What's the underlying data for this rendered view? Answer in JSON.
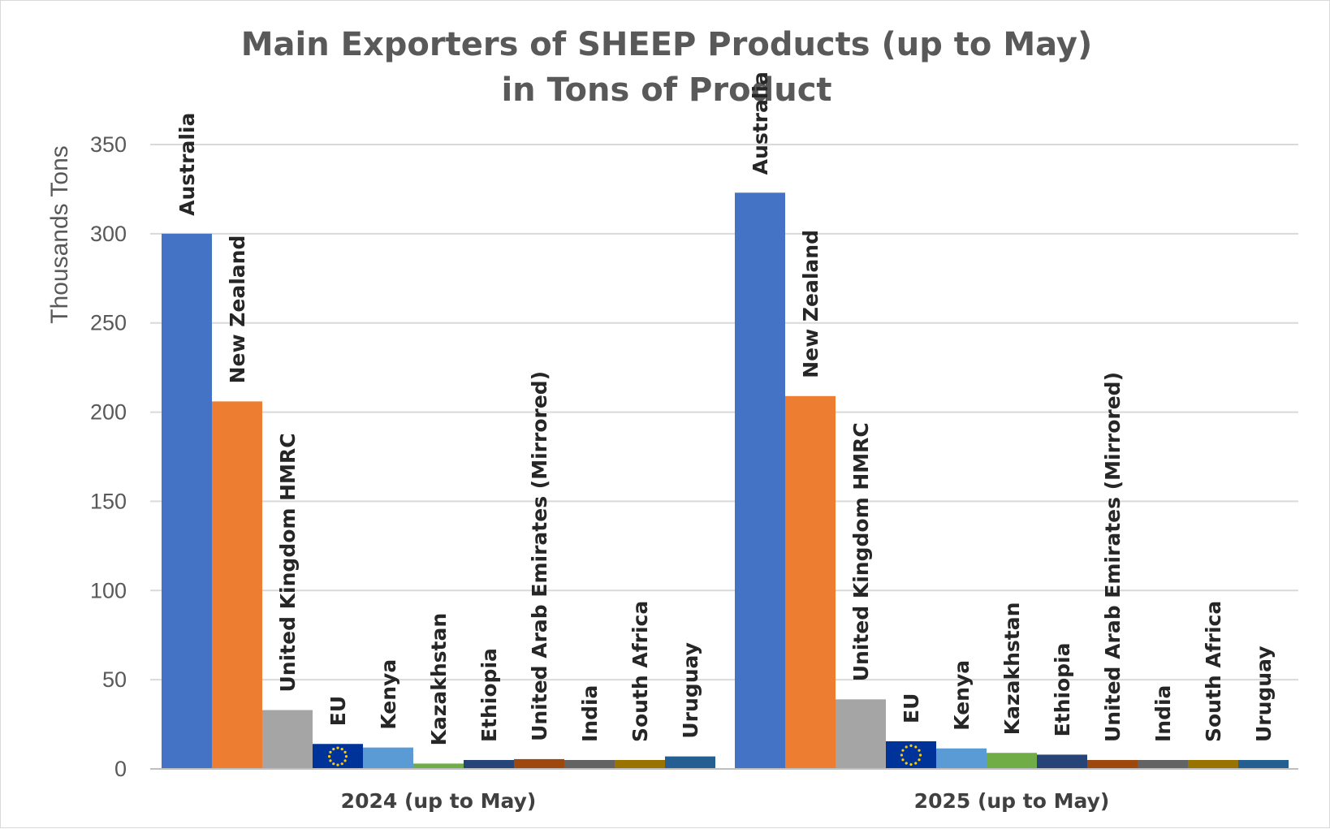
{
  "chart_data": {
    "type": "bar",
    "title": [
      "Main Exporters of SHEEP Products (up to May)",
      "in Tons of Product"
    ],
    "ylabel": "Thousands Tons",
    "xlabel": "",
    "ylim": [
      0,
      350
    ],
    "yticks": [
      0,
      50,
      100,
      150,
      200,
      250,
      300,
      350
    ],
    "grid": true,
    "legend": "none",
    "categories": [
      "2024 (up to May)",
      "2025 (up to May)"
    ],
    "series": [
      {
        "name": "Australia",
        "color": "#4472c4",
        "values": [
          300,
          323
        ]
      },
      {
        "name": "New Zealand",
        "color": "#ed7d31",
        "values": [
          206,
          209
        ]
      },
      {
        "name": "United Kingdom HMRC",
        "color": "#a5a5a5",
        "values": [
          33,
          39
        ]
      },
      {
        "name": "EU",
        "color": "#003399",
        "icon": "eu-flag-icon",
        "values": [
          14,
          15.5
        ]
      },
      {
        "name": "Kenya",
        "color": "#5b9bd5",
        "values": [
          12,
          11.5
        ]
      },
      {
        "name": "Kazakhstan",
        "color": "#70ad47",
        "values": [
          3,
          9
        ]
      },
      {
        "name": "Ethiopia",
        "color": "#264478",
        "values": [
          5,
          8
        ]
      },
      {
        "name": "United Arab Emirates (Mirrored)",
        "color": "#9e480e",
        "values": [
          5.5,
          5
        ]
      },
      {
        "name": "India",
        "color": "#636363",
        "values": [
          5,
          5
        ]
      },
      {
        "name": "South Africa",
        "color": "#997300",
        "values": [
          5,
          5
        ]
      },
      {
        "name": "Uruguay",
        "color": "#255e91",
        "values": [
          7,
          5
        ]
      }
    ]
  }
}
